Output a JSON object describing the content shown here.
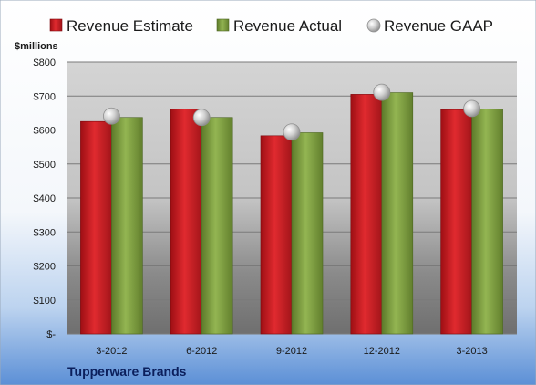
{
  "chart_data": {
    "type": "bar",
    "categories": [
      "3-2012",
      "6-2012",
      "9-2012",
      "12-2012",
      "3-2013"
    ],
    "series": [
      {
        "name": "Revenue Estimate",
        "type": "bar",
        "color": "#c8191e",
        "values": [
          625,
          662,
          583,
          705,
          660
        ]
      },
      {
        "name": "Revenue Actual",
        "type": "bar",
        "color": "#7a9a3c",
        "values": [
          637,
          637,
          592,
          710,
          662
        ]
      },
      {
        "name": "Revenue GAAP",
        "type": "marker",
        "color": "#c0c0c0",
        "values": [
          641,
          637,
          594,
          711,
          663
        ]
      }
    ],
    "ylabel": "$millions",
    "ylim": [
      0,
      800
    ],
    "yticks": [
      0,
      100,
      200,
      300,
      400,
      500,
      600,
      700,
      800
    ],
    "ytick_labels": [
      "$-",
      "$100",
      "$200",
      "$300",
      "$400",
      "$500",
      "$600",
      "$700",
      "$800"
    ],
    "grid": true,
    "legend": "top",
    "footer": "Tupperware Brands"
  }
}
